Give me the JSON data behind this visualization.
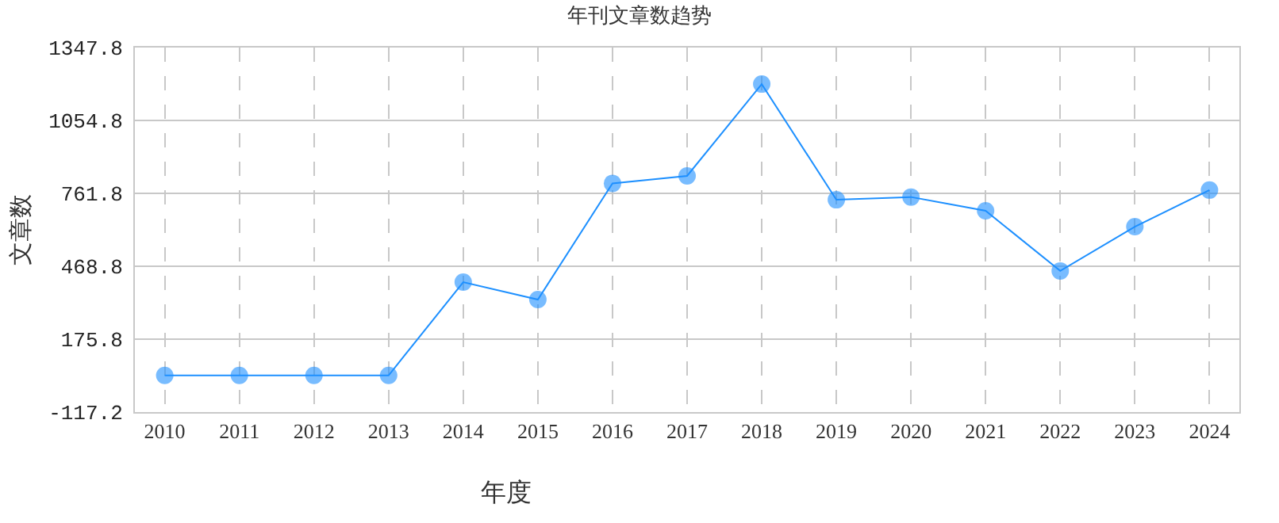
{
  "chart_data": {
    "type": "line",
    "title": "年刊文章数趋势",
    "xlabel": "年度",
    "ylabel": "文章数",
    "categories": [
      "2010",
      "2011",
      "2012",
      "2013",
      "2014",
      "2015",
      "2016",
      "2017",
      "2018",
      "2019",
      "2020",
      "2021",
      "2022",
      "2023",
      "2024"
    ],
    "series": [
      {
        "color": "#1e90ff",
        "values": [
          30,
          30,
          30,
          30,
          405,
          335,
          802,
          832,
          1201,
          736,
          747,
          692,
          450,
          628,
          775
        ]
      }
    ],
    "ylim": [
      -117.2,
      1347.8
    ],
    "yticks": [
      {
        "value": -117.2,
        "label": "-117.2"
      },
      {
        "value": 175.8,
        "label": "175.8"
      },
      {
        "value": 468.8,
        "label": "468.8"
      },
      {
        "value": 761.8,
        "label": "761.8"
      },
      {
        "value": 1054.8,
        "label": "1054.8"
      },
      {
        "value": 1347.8,
        "label": "1347.8"
      }
    ],
    "grid": true,
    "marker": "circle",
    "line_style": "solid",
    "legend": false
  }
}
